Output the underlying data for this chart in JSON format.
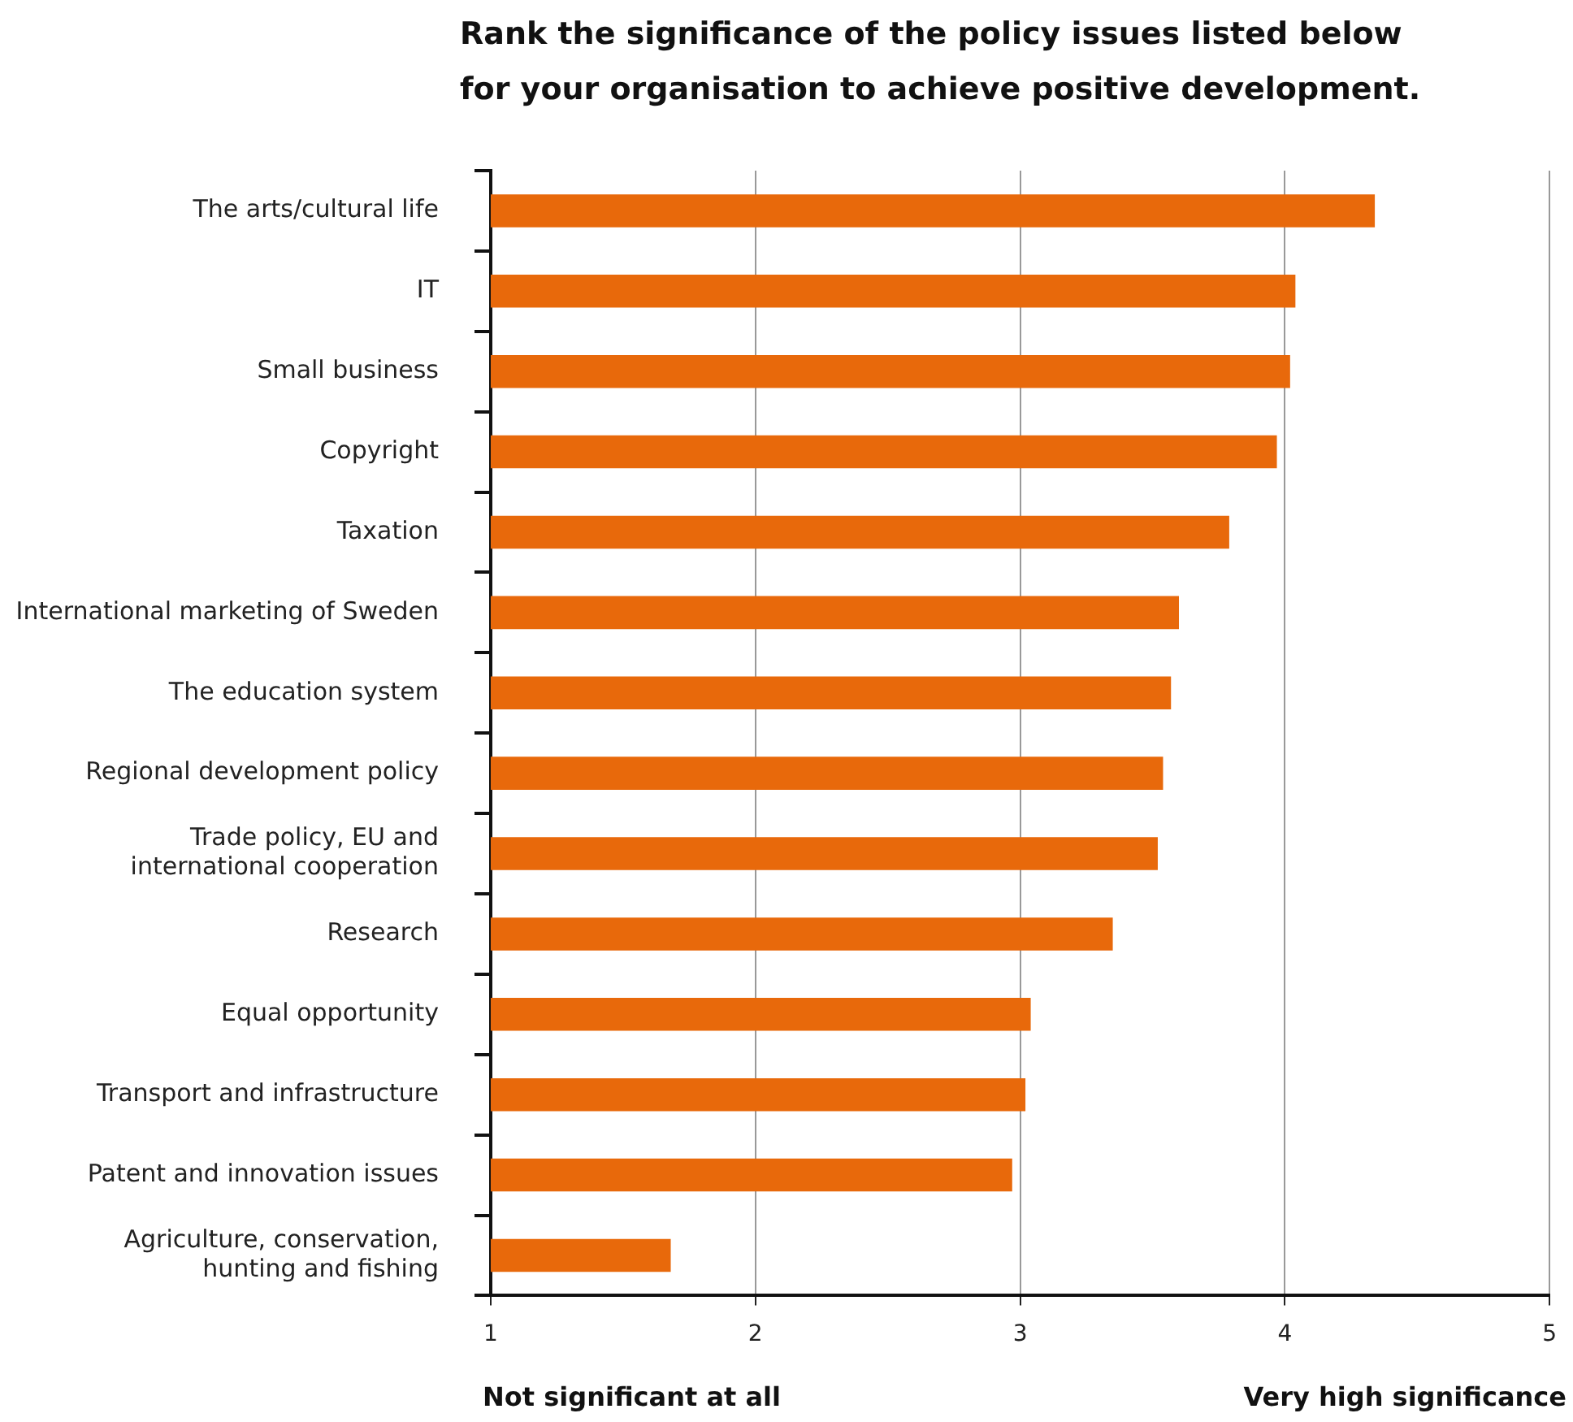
{
  "chart_data": {
    "type": "bar",
    "orientation": "horizontal",
    "title": "Rank the significance of the policy issues listed below for your organisation to achieve positive development.",
    "categories": [
      "The arts/cultural life",
      "IT",
      "Small business",
      "Copyright",
      "Taxation",
      "International marketing of Sweden",
      "The education system",
      "Regional development policy",
      "Trade policy, EU and\ninternational cooperation",
      "Research",
      "Equal opportunity",
      "Transport and infrastructure",
      "Patent and innovation issues",
      "Agriculture, conservation,\nhunting and fishing"
    ],
    "values": [
      4.34,
      4.04,
      4.02,
      3.97,
      3.79,
      3.6,
      3.57,
      3.54,
      3.52,
      3.35,
      3.04,
      3.02,
      2.97,
      1.68
    ],
    "color": "#e8690b",
    "xlim": [
      1,
      5
    ],
    "xticks": [
      1,
      2,
      3,
      4,
      5
    ],
    "grid": "x",
    "legend": false,
    "annotations": [
      "Not significant at all",
      "Very high significance"
    ]
  }
}
